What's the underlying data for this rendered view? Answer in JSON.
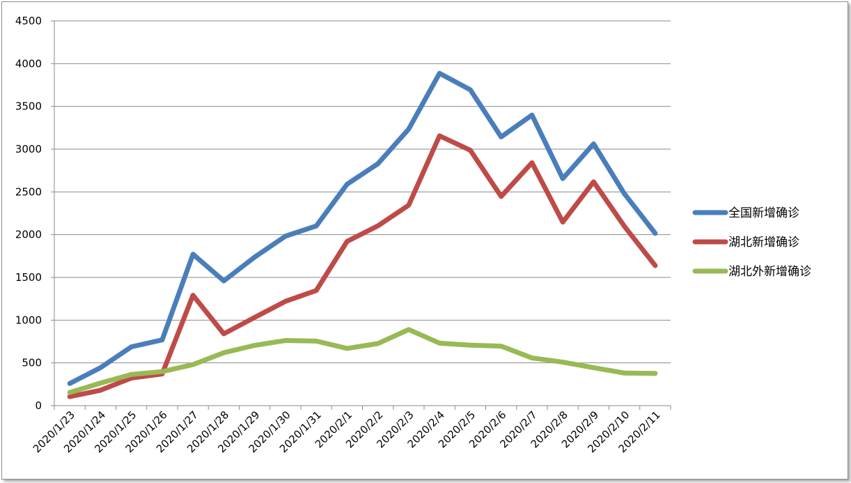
{
  "chart_data": {
    "type": "line",
    "categories": [
      "2020/1/23",
      "2020/1/24",
      "2020/1/25",
      "2020/1/26",
      "2020/1/27",
      "2020/1/28",
      "2020/1/29",
      "2020/1/30",
      "2020/1/31",
      "2020/2/1",
      "2020/2/2",
      "2020/2/3",
      "2020/2/4",
      "2020/2/5",
      "2020/2/6",
      "2020/2/7",
      "2020/2/8",
      "2020/2/9",
      "2020/2/10",
      "2020/2/11"
    ],
    "series": [
      {
        "name": "全国新增确诊",
        "color": "#4a7ebb",
        "values": [
          259,
          444,
          688,
          769,
          1771,
          1459,
          1737,
          1982,
          2102,
          2590,
          2829,
          3235,
          3887,
          3694,
          3143,
          3399,
          2656,
          3062,
          2478,
          2015
        ]
      },
      {
        "name": "湖北新增确诊",
        "color": "#be4b48",
        "values": [
          105,
          180,
          323,
          371,
          1291,
          840,
          1032,
          1220,
          1347,
          1921,
          2103,
          2345,
          3156,
          2987,
          2447,
          2841,
          2147,
          2618,
          2097,
          1638
        ]
      },
      {
        "name": "湖北外新增确诊",
        "color": "#98b954",
        "values": [
          154,
          264,
          365,
          398,
          480,
          619,
          705,
          762,
          755,
          669,
          726,
          890,
          731,
          707,
          696,
          558,
          509,
          444,
          381,
          377
        ]
      }
    ],
    "ylim": [
      0,
      4500
    ],
    "yticks": [
      "0",
      "500",
      "1000",
      "1500",
      "2000",
      "2500",
      "3000",
      "3500",
      "4000",
      "4500"
    ],
    "grid": true,
    "legend": "right"
  }
}
